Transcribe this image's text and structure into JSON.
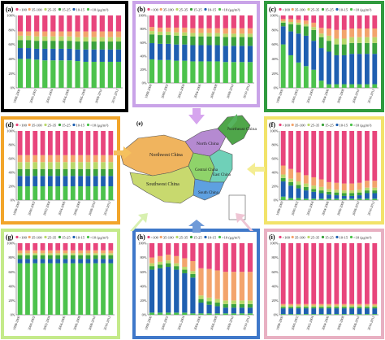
{
  "legend": {
    "items": [
      ">100",
      "35-100",
      "25-35",
      "15-25",
      "10-15",
      "<10 (μg/m³)"
    ],
    "colors": [
      "#e8457c",
      "#f3a46c",
      "#b9d86a",
      "#3aa13c",
      "#1f5fb0",
      "#4cc24c"
    ]
  },
  "y_ticks": [
    "0%",
    "20%",
    "40%",
    "60%",
    "80%",
    "100%"
  ],
  "x_tick_labels": [
    "1998-2000",
    "1999-2001",
    "2000-2002",
    "2001-2003",
    "2002-2004",
    "2003-2005",
    "2004-2006",
    "2005-2007",
    "2006-2008",
    "2007-2009",
    "2008-2010",
    "2009-2011",
    "2010-2012"
  ],
  "map": {
    "panel_letter": "(e)",
    "regions": [
      {
        "name": "Northeast China",
        "color": "#4fa64a"
      },
      {
        "name": "North China",
        "color": "#b58ad1"
      },
      {
        "name": "Northwest China",
        "color": "#f0b45e"
      },
      {
        "name": "Southwest China",
        "color": "#c8d96e"
      },
      {
        "name": "Central China",
        "color": "#8fd36a"
      },
      {
        "name": "East China",
        "color": "#6fd0b8"
      },
      {
        "name": "South China",
        "color": "#5ea0e0"
      }
    ]
  },
  "chart_data": [
    {
      "type": "bar",
      "letter": "(a)",
      "border": "#000000",
      "categories": [
        "1998-2000",
        "1999-2001",
        "2000-2002",
        "2001-2003",
        "2002-2004",
        "2003-2005",
        "2004-2006",
        "2005-2007",
        "2006-2008",
        "2007-2009",
        "2008-2010",
        "2009-2011",
        "2010-2012"
      ],
      "series": [
        {
          "name": "<10",
          "values": [
            40,
            40,
            39,
            38,
            38,
            38,
            38,
            37,
            36,
            36,
            36,
            36,
            36
          ]
        },
        {
          "name": "10-15",
          "values": [
            15,
            15,
            15,
            16,
            16,
            16,
            16,
            16,
            17,
            17,
            17,
            17,
            17
          ]
        },
        {
          "name": "15-25",
          "values": [
            11,
            11,
            11,
            11,
            11,
            11,
            11,
            11,
            11,
            11,
            11,
            11,
            11
          ]
        },
        {
          "name": "25-35",
          "values": [
            6,
            6,
            6,
            6,
            6,
            6,
            6,
            6,
            6,
            6,
            6,
            6,
            6
          ]
        },
        {
          "name": "35-100",
          "values": [
            6,
            6,
            7,
            7,
            7,
            7,
            7,
            8,
            8,
            8,
            8,
            8,
            8
          ]
        },
        {
          "name": ">100",
          "values": [
            22,
            22,
            22,
            22,
            22,
            22,
            22,
            22,
            22,
            22,
            22,
            22,
            22
          ]
        }
      ]
    },
    {
      "type": "bar",
      "letter": "(b)",
      "border": "#c9a3e8",
      "categories": [
        "1998-2000",
        "1999-2001",
        "2000-2002",
        "2001-2003",
        "2002-2004",
        "2003-2005",
        "2004-2006",
        "2005-2007",
        "2006-2008",
        "2007-2009",
        "2008-2010",
        "2009-2011",
        "2010-2012"
      ],
      "series": [
        {
          "name": "<10",
          "values": [
            35,
            34,
            34,
            33,
            33,
            32,
            32,
            32,
            32,
            31,
            31,
            31,
            31
          ]
        },
        {
          "name": "10-15",
          "values": [
            24,
            24,
            24,
            24,
            24,
            24,
            24,
            24,
            24,
            24,
            24,
            24,
            24
          ]
        },
        {
          "name": "15-25",
          "values": [
            13,
            13,
            13,
            13,
            13,
            13,
            13,
            13,
            13,
            13,
            13,
            13,
            13
          ]
        },
        {
          "name": "25-35",
          "values": [
            5,
            5,
            5,
            5,
            5,
            5,
            5,
            5,
            5,
            5,
            5,
            5,
            5
          ]
        },
        {
          "name": "35-100",
          "values": [
            6,
            6,
            6,
            7,
            7,
            7,
            7,
            7,
            7,
            8,
            8,
            8,
            8
          ]
        },
        {
          "name": ">100",
          "values": [
            17,
            18,
            18,
            18,
            18,
            19,
            19,
            19,
            19,
            19,
            19,
            19,
            19
          ]
        }
      ]
    },
    {
      "type": "bar",
      "letter": "(c)",
      "border": "#2f9a3e",
      "categories": [
        "1998-2000",
        "1999-2001",
        "2000-2002",
        "2001-2003",
        "2002-2004",
        "2003-2005",
        "2004-2006",
        "2005-2007",
        "2006-2008",
        "2007-2009",
        "2008-2010",
        "2009-2011",
        "2010-2012"
      ],
      "series": [
        {
          "name": "<10",
          "values": [
            60,
            45,
            35,
            30,
            25,
            10,
            5,
            5,
            5,
            5,
            5,
            5,
            5
          ]
        },
        {
          "name": "10-15",
          "values": [
            25,
            33,
            40,
            42,
            40,
            45,
            45,
            40,
            40,
            42,
            42,
            42,
            42
          ]
        },
        {
          "name": "15-25",
          "values": [
            5,
            10,
            12,
            13,
            15,
            15,
            15,
            15,
            15,
            15,
            15,
            15,
            15
          ]
        },
        {
          "name": "25-35",
          "values": [
            2,
            3,
            3,
            3,
            4,
            5,
            7,
            8,
            8,
            8,
            8,
            8,
            8
          ]
        },
        {
          "name": "35-100",
          "values": [
            3,
            4,
            4,
            5,
            6,
            8,
            10,
            12,
            12,
            12,
            12,
            12,
            12
          ]
        },
        {
          "name": ">100",
          "values": [
            5,
            5,
            6,
            7,
            10,
            17,
            18,
            20,
            20,
            18,
            18,
            18,
            18
          ]
        }
      ]
    },
    {
      "type": "bar",
      "letter": "(d)",
      "border": "#f2a52a",
      "categories": [
        "1998-2000",
        "1999-2001",
        "2000-2002",
        "2001-2003",
        "2002-2004",
        "2003-2005",
        "2004-2006",
        "2005-2007",
        "2006-2008",
        "2007-2009",
        "2008-2010",
        "2009-2011",
        "2010-2012"
      ],
      "series": [
        {
          "name": "<10",
          "values": [
            20,
            20,
            20,
            20,
            20,
            20,
            20,
            20,
            20,
            20,
            20,
            20,
            20
          ]
        },
        {
          "name": "10-15",
          "values": [
            15,
            15,
            15,
            15,
            15,
            15,
            15,
            15,
            15,
            15,
            15,
            15,
            15
          ]
        },
        {
          "name": "15-25",
          "values": [
            10,
            10,
            10,
            10,
            10,
            10,
            10,
            10,
            10,
            10,
            10,
            10,
            10
          ]
        },
        {
          "name": "25-35",
          "values": [
            10,
            10,
            10,
            10,
            10,
            10,
            10,
            10,
            10,
            10,
            10,
            10,
            10
          ]
        },
        {
          "name": "35-100",
          "values": [
            10,
            10,
            10,
            10,
            10,
            10,
            10,
            10,
            10,
            10,
            10,
            10,
            10
          ]
        },
        {
          "name": ">100",
          "values": [
            35,
            35,
            35,
            35,
            35,
            35,
            35,
            35,
            35,
            35,
            35,
            35,
            35
          ]
        }
      ]
    },
    {
      "type": "bar",
      "letter": "(f)",
      "border": "#f2e36a",
      "categories": [
        "1998-2000",
        "1999-2001",
        "2000-2002",
        "2001-2003",
        "2002-2004",
        "2003-2005",
        "2004-2006",
        "2005-2007",
        "2006-2008",
        "2007-2009",
        "2008-2010",
        "2009-2011",
        "2010-2012"
      ],
      "series": [
        {
          "name": "<10",
          "values": [
            5,
            3,
            3,
            2,
            2,
            2,
            2,
            2,
            2,
            2,
            2,
            2,
            2
          ]
        },
        {
          "name": "10-15",
          "values": [
            22,
            18,
            14,
            12,
            10,
            8,
            6,
            5,
            4,
            4,
            5,
            8,
            8
          ]
        },
        {
          "name": "15-25",
          "values": [
            5,
            5,
            5,
            5,
            4,
            4,
            4,
            4,
            4,
            4,
            4,
            4,
            4
          ]
        },
        {
          "name": "25-35",
          "values": [
            5,
            5,
            5,
            5,
            5,
            5,
            4,
            4,
            4,
            4,
            4,
            4,
            4
          ]
        },
        {
          "name": "35-100",
          "values": [
            13,
            14,
            13,
            12,
            12,
            11,
            10,
            10,
            10,
            10,
            10,
            10,
            10
          ]
        },
        {
          "name": ">100",
          "values": [
            50,
            55,
            60,
            64,
            67,
            70,
            74,
            75,
            76,
            76,
            75,
            72,
            72
          ]
        }
      ]
    },
    {
      "type": "bar",
      "letter": "(g)",
      "border": "#c4ea8a",
      "categories": [
        "1998-2000",
        "1999-2001",
        "2000-2002",
        "2001-2003",
        "2002-2004",
        "2003-2005",
        "2004-2006",
        "2005-2007",
        "2006-2008",
        "2007-2009",
        "2008-2010",
        "2009-2011",
        "2010-2012"
      ],
      "series": [
        {
          "name": "<10",
          "values": [
            72,
            72,
            72,
            72,
            72,
            72,
            72,
            72,
            72,
            72,
            72,
            72,
            72
          ]
        },
        {
          "name": "10-15",
          "values": [
            6,
            6,
            6,
            6,
            6,
            6,
            6,
            6,
            6,
            6,
            6,
            6,
            6
          ]
        },
        {
          "name": "15-25",
          "values": [
            5,
            5,
            5,
            5,
            5,
            5,
            5,
            5,
            5,
            5,
            5,
            5,
            5
          ]
        },
        {
          "name": "25-35",
          "values": [
            3,
            3,
            3,
            3,
            3,
            3,
            3,
            3,
            3,
            3,
            3,
            3,
            3
          ]
        },
        {
          "name": "35-100",
          "values": [
            4,
            4,
            4,
            4,
            4,
            4,
            4,
            4,
            4,
            4,
            4,
            4,
            4
          ]
        },
        {
          "name": ">100",
          "values": [
            10,
            10,
            10,
            10,
            10,
            10,
            10,
            10,
            10,
            10,
            10,
            10,
            10
          ]
        }
      ]
    },
    {
      "type": "bar",
      "letter": "(h)",
      "border": "#3f78c9",
      "categories": [
        "1998-2000",
        "1999-2001",
        "2000-2002",
        "2001-2003",
        "2002-2004",
        "2003-2005",
        "2004-2006",
        "2005-2007",
        "2006-2008",
        "2007-2009",
        "2008-2010",
        "2009-2011",
        "2010-2012"
      ],
      "series": [
        {
          "name": "<10",
          "values": [
            3,
            3,
            3,
            3,
            3,
            2,
            2,
            2,
            2,
            2,
            2,
            2,
            2
          ]
        },
        {
          "name": "10-15",
          "values": [
            60,
            62,
            64,
            60,
            55,
            50,
            15,
            12,
            10,
            8,
            8,
            8,
            8
          ]
        },
        {
          "name": "15-25",
          "values": [
            5,
            5,
            5,
            5,
            5,
            5,
            5,
            5,
            5,
            5,
            5,
            5,
            5
          ]
        },
        {
          "name": "25-35",
          "values": [
            4,
            4,
            4,
            4,
            4,
            4,
            5,
            5,
            5,
            5,
            5,
            5,
            5
          ]
        },
        {
          "name": "35-100",
          "values": [
            8,
            8,
            8,
            10,
            12,
            14,
            38,
            40,
            40,
            40,
            40,
            40,
            40
          ]
        },
        {
          "name": ">100",
          "values": [
            20,
            18,
            16,
            18,
            21,
            25,
            35,
            36,
            38,
            40,
            40,
            40,
            40
          ]
        }
      ]
    },
    {
      "type": "bar",
      "letter": "(i)",
      "border": "#e8b0c2",
      "categories": [
        "1998-2000",
        "1999-2001",
        "2000-2002",
        "2001-2003",
        "2002-2004",
        "2003-2005",
        "2004-2006",
        "2005-2007",
        "2006-2008",
        "2007-2009",
        "2008-2010",
        "2009-2011",
        "2010-2012"
      ],
      "series": [
        {
          "name": "<10",
          "values": [
            1,
            1,
            1,
            1,
            1,
            1,
            1,
            1,
            1,
            1,
            1,
            1,
            1
          ]
        },
        {
          "name": "10-15",
          "values": [
            8,
            8,
            8,
            8,
            8,
            8,
            8,
            8,
            8,
            8,
            8,
            8,
            8
          ]
        },
        {
          "name": "15-25",
          "values": [
            2,
            2,
            2,
            2,
            2,
            2,
            2,
            2,
            2,
            2,
            2,
            2,
            2
          ]
        },
        {
          "name": "25-35",
          "values": [
            2,
            2,
            2,
            2,
            2,
            2,
            2,
            2,
            2,
            2,
            2,
            2,
            2
          ]
        },
        {
          "name": "35-100",
          "values": [
            2,
            2,
            2,
            2,
            2,
            2,
            2,
            2,
            2,
            2,
            2,
            2,
            2
          ]
        },
        {
          "name": ">100",
          "values": [
            85,
            85,
            85,
            85,
            85,
            85,
            85,
            85,
            85,
            85,
            85,
            85,
            85
          ]
        }
      ]
    }
  ]
}
